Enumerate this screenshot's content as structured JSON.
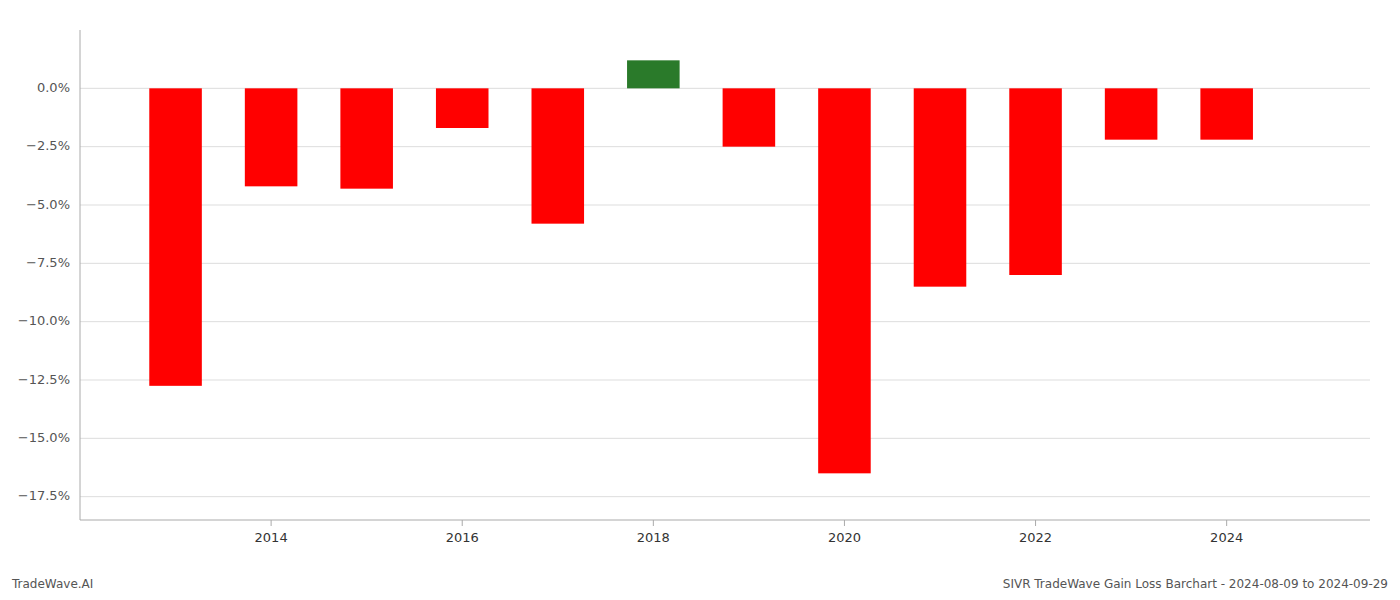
{
  "chart_data": {
    "type": "bar",
    "title": "SIVR TradeWave Gain Loss Barchart - 2024-08-09 to 2024-09-29",
    "annotations": [
      "TradeWave.AI"
    ],
    "x": [
      2013,
      2014,
      2015,
      2016,
      2017,
      2018,
      2019,
      2020,
      2021,
      2022,
      2023,
      2024
    ],
    "values": [
      -0.1275,
      -0.042,
      -0.043,
      -0.017,
      -0.058,
      0.012,
      -0.025,
      -0.165,
      -0.085,
      -0.08,
      -0.022,
      -0.022
    ],
    "colors": [
      "#ff0000",
      "#ff0000",
      "#ff0000",
      "#ff0000",
      "#ff0000",
      "#2a7a2a",
      "#ff0000",
      "#ff0000",
      "#ff0000",
      "#ff0000",
      "#ff0000",
      "#ff0000"
    ],
    "xlim": [
      2012.0,
      2025.5
    ],
    "xticks": [
      2014,
      2016,
      2018,
      2020,
      2022,
      2024
    ],
    "ylim": [
      -0.185,
      0.025
    ],
    "yticks": [
      {
        "value": 0.0,
        "label": "0.0%"
      },
      {
        "value": -0.025,
        "label": "−2.5%"
      },
      {
        "value": -0.05,
        "label": "−5.0%"
      },
      {
        "value": -0.075,
        "label": "−7.5%"
      },
      {
        "value": -0.1,
        "label": "−10.0%"
      },
      {
        "value": -0.125,
        "label": "−12.5%"
      },
      {
        "value": -0.15,
        "label": "−15.0%"
      },
      {
        "value": -0.175,
        "label": "−17.5%"
      }
    ],
    "grid": true
  }
}
